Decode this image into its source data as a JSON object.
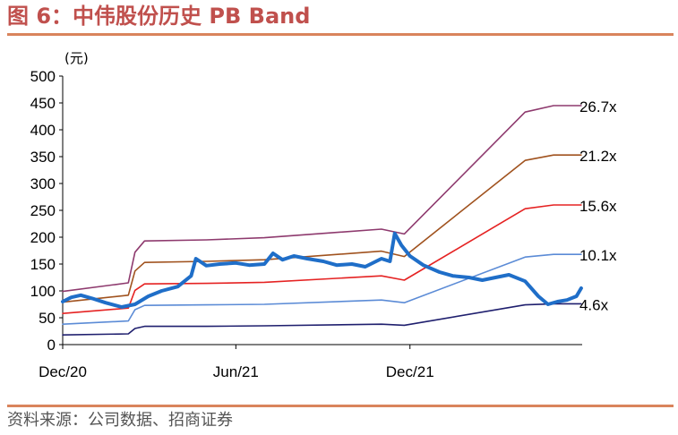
{
  "title": "图 6：中伟股份历史 PB Band",
  "source": "资料来源：公司数据、招商证券",
  "chart_data": {
    "type": "line",
    "unit_label": "(元)",
    "ylim": [
      0,
      500
    ],
    "yticks": [
      0,
      50,
      100,
      150,
      200,
      250,
      300,
      350,
      400,
      450,
      500
    ],
    "xlim": [
      "2020-12-01",
      "2022-05-31"
    ],
    "xticks": [
      {
        "date": "2020-12-01",
        "label": "Dec/20"
      },
      {
        "date": "2021-06-01",
        "label": "Jun/21"
      },
      {
        "date": "2021-12-01",
        "label": "Dec/21"
      }
    ],
    "grid": false,
    "legend": "none",
    "series": [
      {
        "name": "4.6x",
        "color": "#1f1f6e",
        "points": [
          [
            "2020-12-01",
            18
          ],
          [
            "2021-02-08",
            20
          ],
          [
            "2021-02-15",
            30
          ],
          [
            "2021-02-25",
            34
          ],
          [
            "2021-05-01",
            34
          ],
          [
            "2021-07-01",
            35
          ],
          [
            "2021-11-01",
            38
          ],
          [
            "2021-11-25",
            36
          ],
          [
            "2022-04-01",
            74
          ],
          [
            "2022-05-01",
            76
          ],
          [
            "2022-05-30",
            76
          ]
        ]
      },
      {
        "name": "10.1x",
        "color": "#5b8bd6",
        "points": [
          [
            "2020-12-01",
            38
          ],
          [
            "2021-02-08",
            44
          ],
          [
            "2021-02-15",
            65
          ],
          [
            "2021-02-25",
            73
          ],
          [
            "2021-05-01",
            74
          ],
          [
            "2021-07-01",
            75
          ],
          [
            "2021-11-01",
            83
          ],
          [
            "2021-11-25",
            78
          ],
          [
            "2022-04-01",
            163
          ],
          [
            "2022-05-01",
            168
          ],
          [
            "2022-05-30",
            168
          ]
        ]
      },
      {
        "name": "15.6x",
        "color": "#e52222",
        "points": [
          [
            "2020-12-01",
            58
          ],
          [
            "2021-02-08",
            68
          ],
          [
            "2021-02-15",
            101
          ],
          [
            "2021-02-25",
            113
          ],
          [
            "2021-05-01",
            114
          ],
          [
            "2021-07-01",
            116
          ],
          [
            "2021-11-01",
            128
          ],
          [
            "2021-11-25",
            120
          ],
          [
            "2022-04-01",
            253
          ],
          [
            "2022-05-01",
            260
          ],
          [
            "2022-05-30",
            260
          ]
        ]
      },
      {
        "name": "21.2x",
        "color": "#a0521e",
        "points": [
          [
            "2020-12-01",
            79
          ],
          [
            "2021-02-08",
            92
          ],
          [
            "2021-02-15",
            137
          ],
          [
            "2021-02-25",
            153
          ],
          [
            "2021-05-01",
            155
          ],
          [
            "2021-07-01",
            158
          ],
          [
            "2021-11-01",
            174
          ],
          [
            "2021-11-25",
            164
          ],
          [
            "2022-04-01",
            343
          ],
          [
            "2022-05-01",
            353
          ],
          [
            "2022-05-30",
            353
          ]
        ]
      },
      {
        "name": "26.7x",
        "color": "#8e3a6e",
        "points": [
          [
            "2020-12-01",
            99
          ],
          [
            "2021-02-08",
            115
          ],
          [
            "2021-02-15",
            172
          ],
          [
            "2021-02-25",
            193
          ],
          [
            "2021-05-01",
            195
          ],
          [
            "2021-07-01",
            199
          ],
          [
            "2021-11-01",
            215
          ],
          [
            "2021-11-25",
            206
          ],
          [
            "2022-04-01",
            433
          ],
          [
            "2022-05-01",
            445
          ],
          [
            "2022-05-30",
            445
          ]
        ]
      },
      {
        "name": "",
        "color": "#1f6ec8",
        "points": [
          [
            "2020-12-01",
            80
          ],
          [
            "2020-12-10",
            88
          ],
          [
            "2020-12-20",
            92
          ],
          [
            "2021-01-01",
            86
          ],
          [
            "2021-01-15",
            78
          ],
          [
            "2021-02-01",
            70
          ],
          [
            "2021-02-15",
            75
          ],
          [
            "2021-03-01",
            90
          ],
          [
            "2021-03-15",
            100
          ],
          [
            "2021-04-01",
            108
          ],
          [
            "2021-04-15",
            128
          ],
          [
            "2021-04-20",
            160
          ],
          [
            "2021-05-01",
            147
          ],
          [
            "2021-05-15",
            150
          ],
          [
            "2021-06-01",
            152
          ],
          [
            "2021-06-15",
            148
          ],
          [
            "2021-07-01",
            150
          ],
          [
            "2021-07-10",
            170
          ],
          [
            "2021-07-20",
            158
          ],
          [
            "2021-08-01",
            165
          ],
          [
            "2021-08-15",
            160
          ],
          [
            "2021-09-01",
            155
          ],
          [
            "2021-09-15",
            148
          ],
          [
            "2021-10-01",
            150
          ],
          [
            "2021-10-15",
            145
          ],
          [
            "2021-11-01",
            160
          ],
          [
            "2021-11-10",
            155
          ],
          [
            "2021-11-15",
            207
          ],
          [
            "2021-11-22",
            185
          ],
          [
            "2021-12-01",
            165
          ],
          [
            "2021-12-15",
            148
          ],
          [
            "2022-01-01",
            135
          ],
          [
            "2022-01-15",
            128
          ],
          [
            "2022-02-01",
            125
          ],
          [
            "2022-02-15",
            120
          ],
          [
            "2022-03-01",
            125
          ],
          [
            "2022-03-15",
            130
          ],
          [
            "2022-04-01",
            118
          ],
          [
            "2022-04-15",
            90
          ],
          [
            "2022-04-25",
            75
          ],
          [
            "2022-05-05",
            80
          ],
          [
            "2022-05-15",
            83
          ],
          [
            "2022-05-25",
            90
          ],
          [
            "2022-05-30",
            105
          ]
        ]
      }
    ]
  }
}
